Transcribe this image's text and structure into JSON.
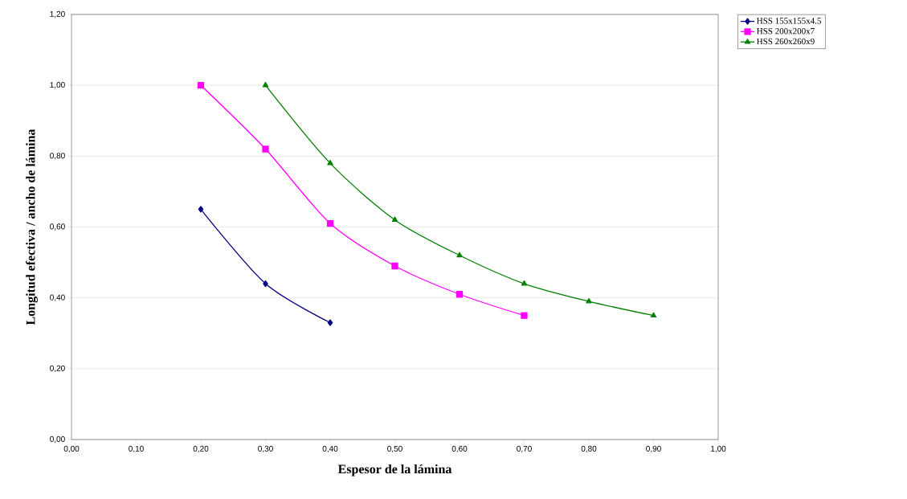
{
  "chart_data": {
    "type": "line",
    "xlabel": "Espesor de la lámina",
    "ylabel": "Longitud efectiva / ancho de lámina",
    "xlim": [
      0,
      1
    ],
    "ylim": [
      0,
      1.2
    ],
    "xticks": [
      {
        "value": 0,
        "label": "0,00"
      },
      {
        "value": 0.1,
        "label": "0,10"
      },
      {
        "value": 0.2,
        "label": "0,20"
      },
      {
        "value": 0.3,
        "label": "0,30"
      },
      {
        "value": 0.4,
        "label": "0,40"
      },
      {
        "value": 0.5,
        "label": "0,50"
      },
      {
        "value": 0.6,
        "label": "0,60"
      },
      {
        "value": 0.7,
        "label": "0,70"
      },
      {
        "value": 0.8,
        "label": "0,80"
      },
      {
        "value": 0.9,
        "label": "0,90"
      },
      {
        "value": 1,
        "label": "1,00"
      }
    ],
    "yticks": [
      {
        "value": 0,
        "label": "0,00"
      },
      {
        "value": 0.2,
        "label": "0,20"
      },
      {
        "value": 0.4,
        "label": "0,40"
      },
      {
        "value": 0.6,
        "label": "0,60"
      },
      {
        "value": 0.8,
        "label": "0,80"
      },
      {
        "value": 1,
        "label": "1,00"
      },
      {
        "value": 1.2,
        "label": "1,20"
      }
    ],
    "grid": "y",
    "legend": "top right",
    "series": [
      {
        "name": "HSS 155x155x4.5",
        "color": "#000080",
        "marker": "diamond",
        "x": [
          0.2,
          0.3,
          0.4
        ],
        "values": [
          0.65,
          0.44,
          0.33
        ]
      },
      {
        "name": "HSS 200x200x7",
        "color": "#ff00ff",
        "marker": "square",
        "x": [
          0.2,
          0.3,
          0.4,
          0.5,
          0.6,
          0.7
        ],
        "values": [
          1.0,
          0.82,
          0.61,
          0.49,
          0.41,
          0.35
        ]
      },
      {
        "name": "HSS 260x260x9",
        "color": "#008000",
        "marker": "triangle",
        "x": [
          0.3,
          0.4,
          0.5,
          0.6,
          0.7,
          0.8,
          0.9
        ],
        "values": [
          1.0,
          0.78,
          0.62,
          0.52,
          0.44,
          0.39,
          0.35
        ]
      }
    ]
  }
}
